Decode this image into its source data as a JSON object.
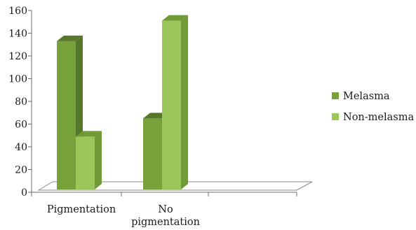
{
  "chart_data": {
    "type": "bar",
    "style": "3d-clustered-column",
    "categories": [
      [
        "Pigmentation"
      ],
      [
        "No",
        "pigmentation"
      ]
    ],
    "series": [
      {
        "name": "Melasma",
        "values": [
          133,
          65
        ],
        "color": "#77a13a",
        "shade": "#56782a"
      },
      {
        "name": "Non-melasma",
        "values": [
          49,
          151
        ],
        "color": "#9ac65a",
        "shade": "#6f9a36"
      }
    ],
    "ylim": [
      0,
      160
    ],
    "yticks": [
      0,
      20,
      40,
      60,
      80,
      100,
      120,
      140,
      160
    ],
    "title": "",
    "xlabel": "",
    "ylabel": "",
    "grid": false,
    "legend_position": "right"
  }
}
